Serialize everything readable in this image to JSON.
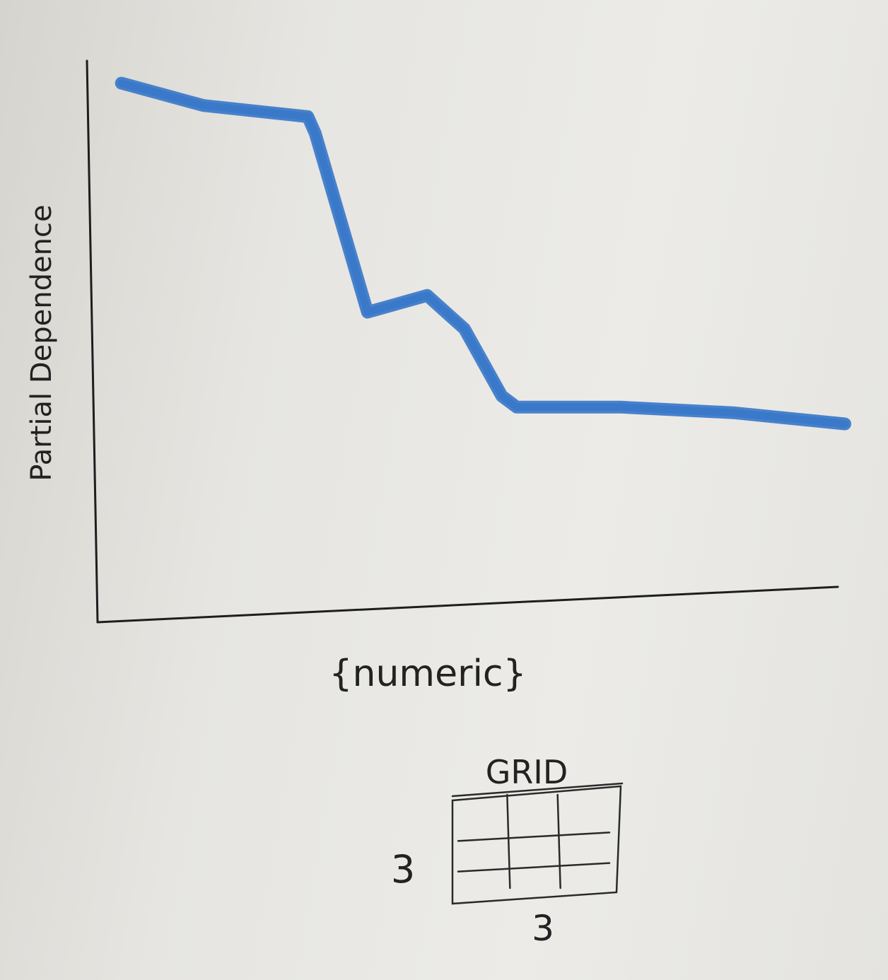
{
  "chart_data": {
    "type": "line",
    "title": "",
    "xlabel": "{numeric}",
    "ylabel": "Partial Dependence",
    "grid": false,
    "legend": "none",
    "xlim": [
      0,
      1
    ],
    "ylim": [
      0,
      1
    ],
    "series": [
      {
        "color": "#3a78c9",
        "x": [
          0.03,
          0.14,
          0.28,
          0.29,
          0.36,
          0.44,
          0.49,
          0.54,
          0.56,
          0.7,
          0.85,
          1.0
        ],
        "y": [
          0.96,
          0.92,
          0.9,
          0.87,
          0.55,
          0.58,
          0.52,
          0.4,
          0.38,
          0.38,
          0.37,
          0.35
        ]
      }
    ]
  },
  "inset": {
    "label": "GRID",
    "rows_label": "3",
    "cols_label": "3",
    "rows": 3,
    "cols": 3
  }
}
